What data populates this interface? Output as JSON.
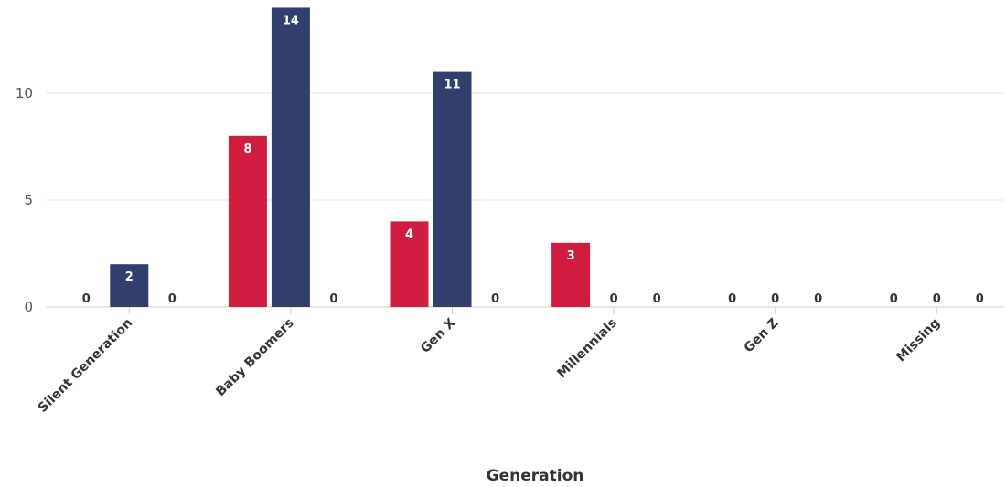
{
  "chart_data": {
    "type": "bar",
    "title": "",
    "xlabel": "Generation",
    "ylabel": "",
    "categories": [
      "Silent Generation",
      "Baby Boomers",
      "Gen X",
      "Millennials",
      "Gen Z",
      "Missing"
    ],
    "series": [
      {
        "values": [
          0,
          8,
          4,
          3,
          0,
          0
        ],
        "color": "#d01c3f"
      },
      {
        "values": [
          2,
          14,
          11,
          0,
          0,
          0
        ],
        "color": "#313f6e"
      },
      {
        "values": [
          0,
          0,
          0,
          0,
          0,
          0
        ],
        "color": "#8c8c8c"
      }
    ],
    "yticks": [
      "0",
      "5",
      "10"
    ],
    "ylim": [
      0,
      14
    ],
    "grid": true,
    "legend": "none",
    "colors": {
      "grid": "#e6e6e6",
      "axis": "#cccccc"
    }
  }
}
